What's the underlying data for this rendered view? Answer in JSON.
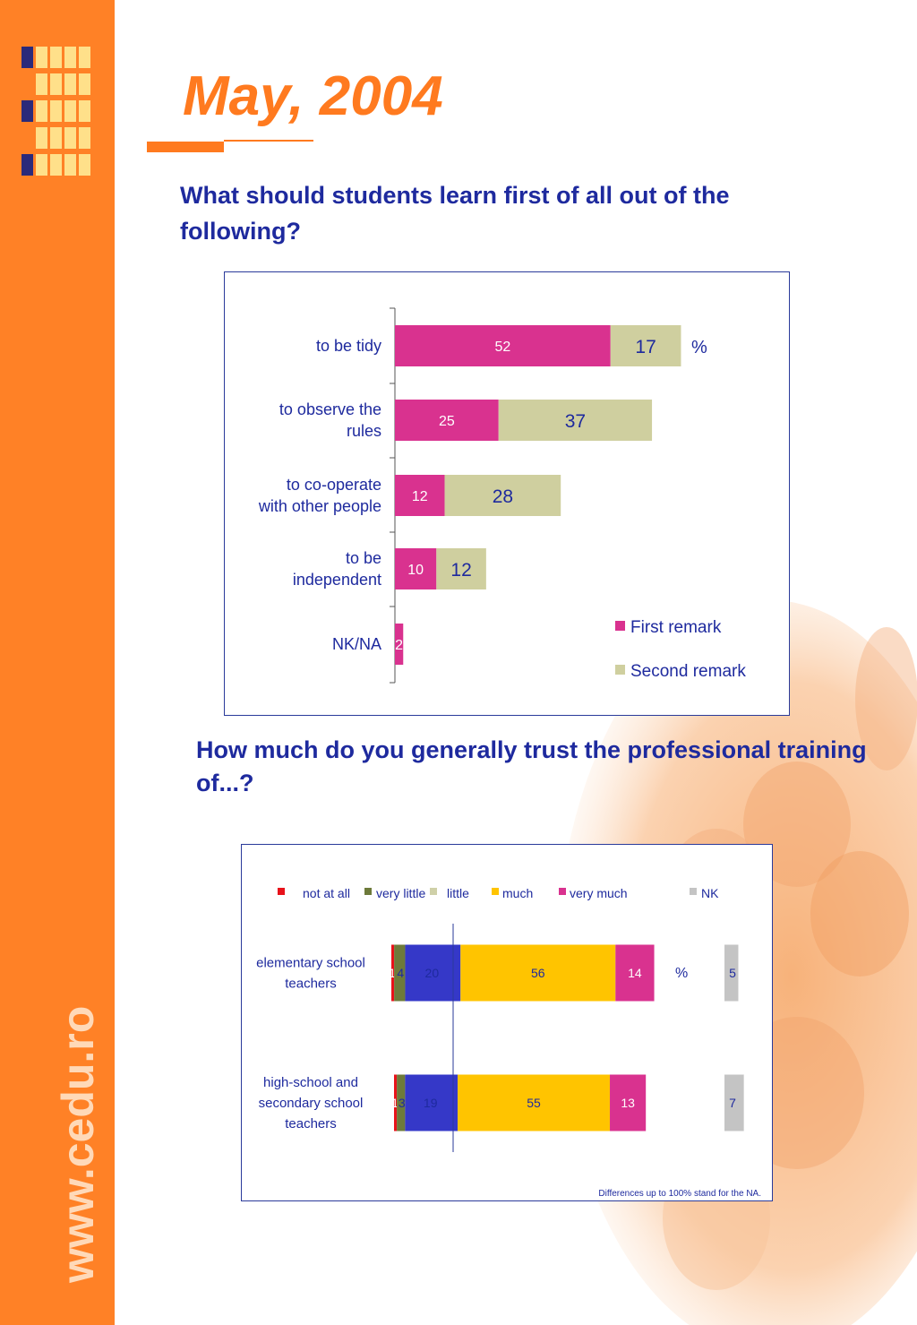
{
  "site_text": "www.cedu.ro",
  "title": "May, 2004",
  "question1": "What should students learn first of all out of the following?",
  "question2": "How much do you generally trust the professional training of...?",
  "colors": {
    "accent": "#ff7a1f",
    "sidebar": "#ff8126",
    "heading": "#1e2a9e",
    "first_remark": "#d9328f",
    "second_remark": "#cfcf9f",
    "not_at_all": "#e8121a",
    "very_little": "#6d7a3a",
    "little": "#cfd0a8",
    "much": "#ffc400",
    "very_much": "#d9328f",
    "nk": "#c4c4c4",
    "trust_band": "#3538c8"
  },
  "chart_data": [
    {
      "type": "bar",
      "orientation": "horizontal",
      "stacked": true,
      "categories": [
        "to be tidy",
        "to observe the rules",
        "to co-operate with other people",
        "to be independent",
        "NK/NA"
      ],
      "category_lines": [
        [
          "to be tidy"
        ],
        [
          "to observe the",
          "rules"
        ],
        [
          "to co-operate",
          "with other people"
        ],
        [
          "to be",
          "independent"
        ],
        [
          "NK/NA"
        ]
      ],
      "series": [
        {
          "name": "First remark",
          "values": [
            52,
            25,
            12,
            10,
            2
          ]
        },
        {
          "name": "Second remark",
          "values": [
            17,
            37,
            28,
            12,
            null
          ]
        }
      ],
      "unit_label": "%",
      "legend": "bottom-right",
      "grid": false
    },
    {
      "type": "bar",
      "orientation": "horizontal",
      "stacked": true,
      "categories": [
        "elementary school teachers",
        "high-school and secondary school teachers"
      ],
      "category_lines": [
        [
          "elementary school",
          "teachers"
        ],
        [
          "high-school and",
          "secondary school",
          "teachers"
        ]
      ],
      "series": [
        {
          "name": "not at all",
          "values": [
            1,
            1
          ]
        },
        {
          "name": "very little",
          "values": [
            4,
            3
          ]
        },
        {
          "name": "little",
          "values": [
            20,
            19
          ]
        },
        {
          "name": "much",
          "values": [
            56,
            55
          ]
        },
        {
          "name": "very much",
          "values": [
            14,
            13
          ]
        },
        {
          "name": "NK",
          "values": [
            5,
            7
          ]
        }
      ],
      "unit_label": "%",
      "legend": "top",
      "grid": false,
      "footnote": "Differences up to 100% stand for the NA."
    }
  ]
}
